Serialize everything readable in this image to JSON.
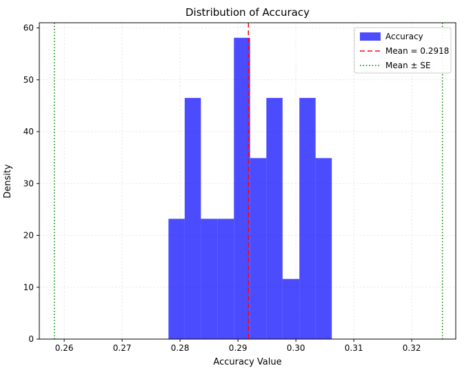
{
  "chart_data": {
    "type": "bar",
    "subtype": "histogram",
    "title": "Distribution of Accuracy",
    "xlabel": "Accuracy Value",
    "ylabel": "Density",
    "xlim": [
      0.2557,
      0.3276
    ],
    "ylim": [
      0,
      61
    ],
    "xticks": [
      0.26,
      0.27,
      0.28,
      0.29,
      0.3,
      0.31,
      0.32
    ],
    "xtick_labels": [
      "0.26",
      "0.27",
      "0.28",
      "0.29",
      "0.30",
      "0.31",
      "0.32"
    ],
    "yticks": [
      0,
      10,
      20,
      30,
      40,
      50,
      60
    ],
    "ytick_labels": [
      "0",
      "10",
      "20",
      "30",
      "40",
      "50",
      "60"
    ],
    "bin_edges": [
      0.278,
      0.2808,
      0.2836,
      0.2865,
      0.2893,
      0.2921,
      0.2949,
      0.2977,
      0.3006,
      0.3034,
      0.3062
    ],
    "densities": [
      23.2,
      46.5,
      23.2,
      23.2,
      58.1,
      34.9,
      46.5,
      11.6,
      46.5,
      34.9
    ],
    "series_label": "Accuracy",
    "bar_color": "#0000ff",
    "bar_alpha": 0.7,
    "mean_line": {
      "value": 0.2918,
      "color": "#ff0000",
      "style": "dashed",
      "label": "Mean = 0.2918"
    },
    "se_lines": {
      "values": [
        0.2583,
        0.3253
      ],
      "color": "#008000",
      "style": "dotted",
      "label": "Mean ± SE"
    },
    "grid": true,
    "legend_position": "upper right"
  }
}
